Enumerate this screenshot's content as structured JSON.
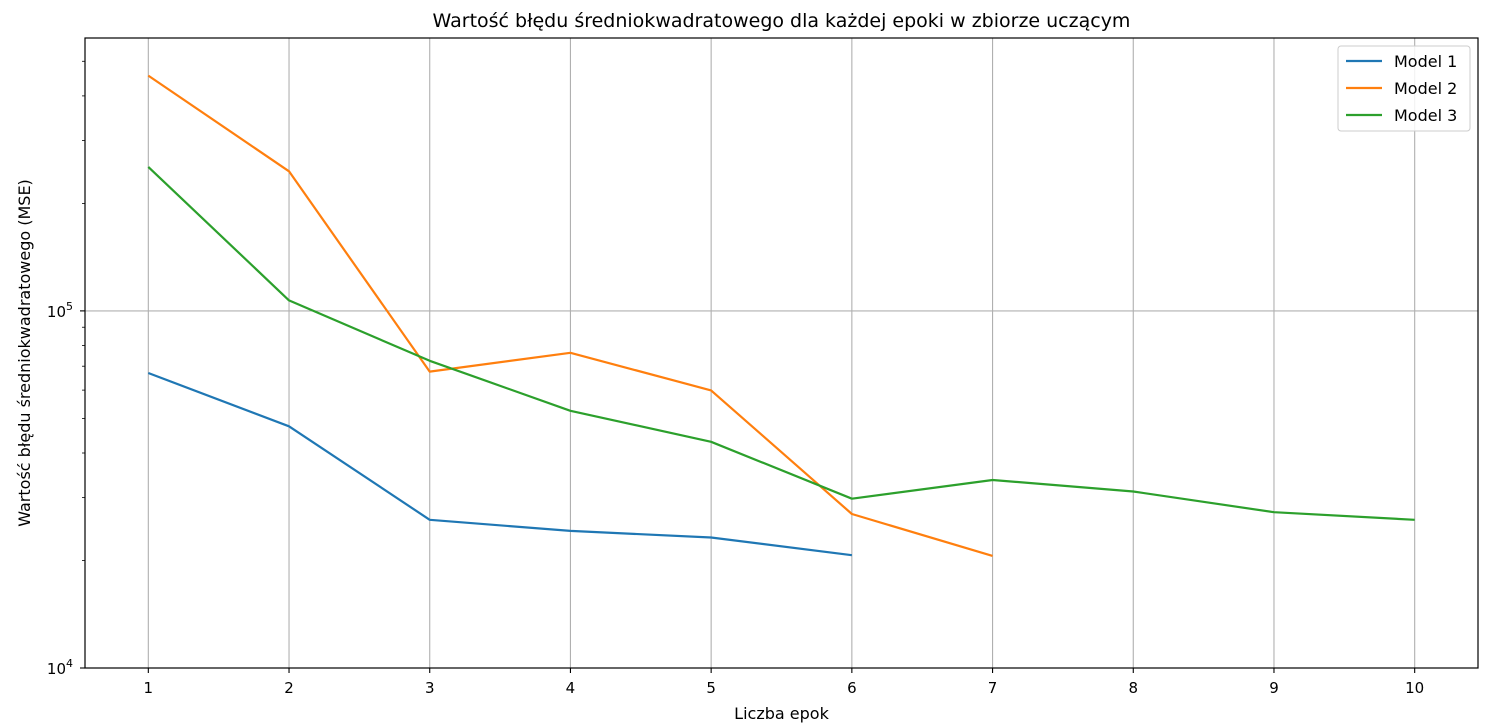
{
  "chart_data": {
    "type": "line",
    "title": "Wartość błędu średniokwadratowego dla każdej epoki w zbiorze uczącym",
    "xlabel": "Liczba epok",
    "ylabel": "Wartość błędu średniokwadratowego (MSE)",
    "x_ticks": [
      1,
      2,
      3,
      4,
      5,
      6,
      7,
      8,
      9,
      10
    ],
    "y_scale": "log",
    "y_ticks": [
      {
        "value": 10000,
        "base": "10",
        "exp": "4"
      },
      {
        "value": 100000,
        "base": "10",
        "exp": "5"
      }
    ],
    "xlim": [
      0.55,
      10.45
    ],
    "ylim": [
      10000,
      581000
    ],
    "grid": true,
    "legend_position": "top-right",
    "series": [
      {
        "name": "Model 1",
        "color": "#1f77b4",
        "x": [
          1,
          2,
          3,
          4,
          5,
          6
        ],
        "y": [
          67000,
          47500,
          26000,
          24200,
          23200,
          20700
        ]
      },
      {
        "name": "Model 2",
        "color": "#ff7f0e",
        "x": [
          1,
          2,
          3,
          4,
          5,
          6,
          7
        ],
        "y": [
          456000,
          246000,
          67600,
          76300,
          59900,
          27000,
          20600
        ]
      },
      {
        "name": "Model 3",
        "color": "#2ca02c",
        "x": [
          1,
          2,
          3,
          4,
          5,
          6,
          7,
          8,
          9,
          10
        ],
        "y": [
          253000,
          107000,
          72500,
          52500,
          43000,
          29800,
          33600,
          31200,
          27300,
          26000
        ]
      }
    ]
  }
}
